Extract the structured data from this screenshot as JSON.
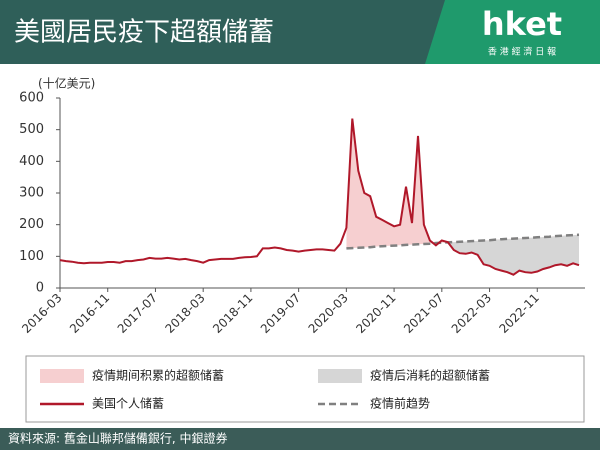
{
  "header": {
    "title": "美國居民疫下超額儲蓄",
    "logo": "hket",
    "logo_sub": "香 港 經 濟 日 報"
  },
  "chart_data": {
    "type": "line",
    "y_label": "(十亿美元)",
    "x": [
      "2016-03",
      "2016-04",
      "2016-05",
      "2016-06",
      "2016-07",
      "2016-08",
      "2016-09",
      "2016-10",
      "2016-11",
      "2016-12",
      "2017-01",
      "2017-02",
      "2017-03",
      "2017-04",
      "2017-05",
      "2017-06",
      "2017-07",
      "2017-08",
      "2017-09",
      "2017-10",
      "2017-11",
      "2017-12",
      "2018-01",
      "2018-02",
      "2018-03",
      "2018-04",
      "2018-05",
      "2018-06",
      "2018-07",
      "2018-08",
      "2018-09",
      "2018-10",
      "2018-11",
      "2018-12",
      "2019-01",
      "2019-02",
      "2019-03",
      "2019-04",
      "2019-05",
      "2019-06",
      "2019-07",
      "2019-08",
      "2019-09",
      "2019-10",
      "2019-11",
      "2019-12",
      "2020-01",
      "2020-02",
      "2020-03",
      "2020-04",
      "2020-05",
      "2020-06",
      "2020-07",
      "2020-08",
      "2020-09",
      "2020-10",
      "2020-11",
      "2020-12",
      "2021-01",
      "2021-02",
      "2021-03",
      "2021-04",
      "2021-05",
      "2021-06",
      "2021-07",
      "2021-08",
      "2021-09",
      "2021-10",
      "2021-11",
      "2021-12",
      "2022-01",
      "2022-02",
      "2022-03",
      "2022-04",
      "2022-05",
      "2022-06",
      "2022-07",
      "2022-08",
      "2022-09",
      "2022-10",
      "2022-11",
      "2022-12",
      "2023-01",
      "2023-02",
      "2023-03",
      "2023-04",
      "2023-05",
      "2023-06"
    ],
    "series": [
      {
        "name": "美国个人储蓄",
        "color": "#b0182a",
        "dash": false,
        "values": [
          88,
          85,
          83,
          80,
          78,
          80,
          80,
          80,
          82,
          82,
          80,
          85,
          85,
          88,
          90,
          95,
          93,
          93,
          95,
          93,
          90,
          92,
          88,
          85,
          80,
          88,
          90,
          92,
          92,
          92,
          95,
          97,
          98,
          100,
          125,
          125,
          128,
          125,
          120,
          118,
          115,
          118,
          120,
          122,
          122,
          120,
          118,
          140,
          190,
          535,
          370,
          300,
          290,
          225,
          215,
          205,
          195,
          200,
          320,
          205,
          480,
          200,
          150,
          135,
          150,
          145,
          120,
          110,
          108,
          112,
          105,
          75,
          70,
          60,
          55,
          50,
          42,
          55,
          50,
          48,
          52,
          60,
          65,
          72,
          75,
          70,
          78,
          72
        ]
      },
      {
        "name": "疫情前趋势",
        "color": "#808080",
        "dash": true,
        "values": [
          null,
          null,
          null,
          null,
          null,
          null,
          null,
          null,
          null,
          null,
          null,
          null,
          null,
          null,
          null,
          null,
          null,
          null,
          null,
          null,
          null,
          null,
          null,
          null,
          null,
          null,
          null,
          null,
          null,
          null,
          null,
          null,
          null,
          null,
          null,
          null,
          null,
          null,
          null,
          null,
          null,
          null,
          null,
          null,
          null,
          null,
          null,
          null,
          125,
          126,
          127,
          128,
          129,
          131,
          132,
          133,
          134,
          135,
          136,
          137,
          138,
          139,
          140,
          142,
          143,
          144,
          145,
          146,
          147,
          148,
          149,
          150,
          151,
          153,
          154,
          155,
          156,
          157,
          158,
          159,
          160,
          161,
          162,
          164,
          165,
          166,
          167,
          168
        ]
      }
    ],
    "areas": [
      {
        "name": "疫情期间积累的超额储蓄",
        "color": "#f6cfd0"
      },
      {
        "name": "疫情后消耗的超额储蓄",
        "color": "#d6d6d6"
      }
    ],
    "xlim": [
      "2016-03",
      "2023-07"
    ],
    "xticks": [
      "2016-03",
      "2016-11",
      "2017-07",
      "2018-03",
      "2018-11",
      "2019-07",
      "2020-03",
      "2020-11",
      "2021-07",
      "2022-03",
      "2022-11"
    ],
    "ylim": [
      0,
      600
    ],
    "yticks": [
      0,
      100,
      200,
      300,
      400,
      500,
      600
    ],
    "grid": false
  },
  "footer": {
    "source": "資料來源: 舊金山聯邦儲備銀行, 中銀證券"
  }
}
